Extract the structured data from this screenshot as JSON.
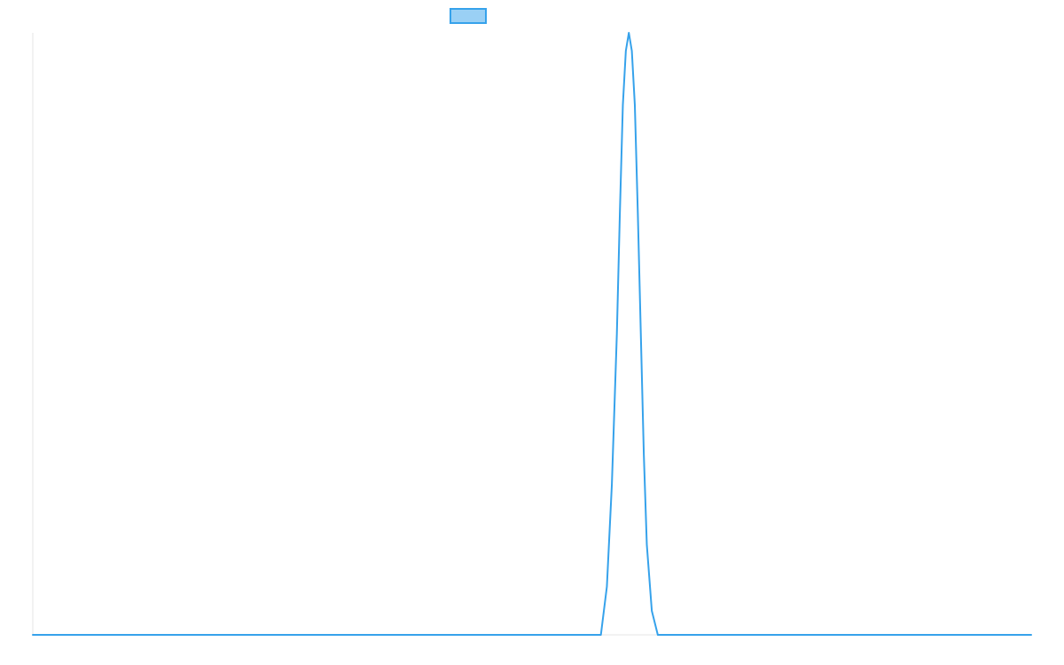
{
  "chart_data": {
    "type": "line",
    "title": "",
    "xlabel": "",
    "ylabel": "",
    "x_range": [
      0,
      100
    ],
    "ylim": [
      0,
      1
    ],
    "grid": false,
    "legend_position": "top",
    "series": [
      {
        "name": "",
        "color": "#36a2eb",
        "fill_color": "#9ad0f5",
        "x": [
          0,
          56.9,
          57.5,
          58.0,
          58.5,
          58.8,
          59.1,
          59.4,
          59.7,
          60.0,
          60.3,
          60.6,
          60.9,
          61.2,
          61.5,
          62.0,
          62.6,
          63.2,
          100
        ],
        "values": [
          0,
          0,
          0.08,
          0.25,
          0.5,
          0.7,
          0.88,
          0.97,
          1.0,
          0.97,
          0.88,
          0.7,
          0.5,
          0.3,
          0.15,
          0.04,
          0,
          0,
          0
        ]
      }
    ]
  }
}
